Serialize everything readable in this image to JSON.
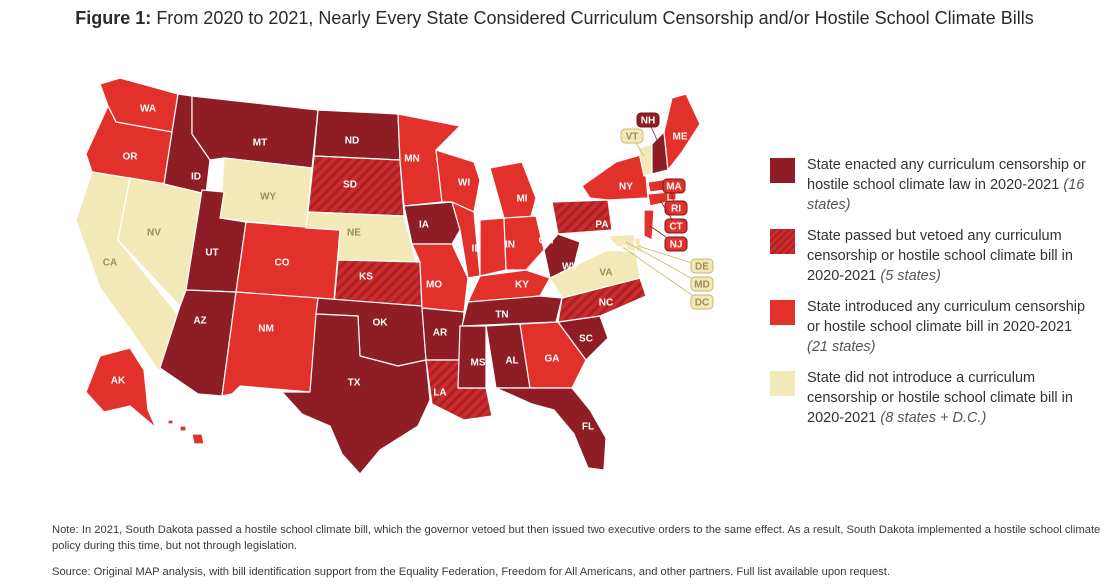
{
  "title": {
    "prefix": "Figure 1:",
    "text": "From 2020 to 2021, Nearly Every State Considered Curriculum Censorship and/or Hostile School Climate Bills"
  },
  "colors": {
    "enacted": "#8e1d26",
    "vetoed": "#cf2b2b",
    "introduced": "#e2302b",
    "none": "#f3e8b8"
  },
  "legend": [
    {
      "key": "enacted",
      "label": "State enacted any curriculum censorship or hostile school climate law in 2020-2021",
      "count": "(16 states)"
    },
    {
      "key": "vetoed",
      "label": "State passed but vetoed any curriculum censorship or hostile school climate bill in 2020-2021",
      "count": "(5 states)"
    },
    {
      "key": "introduced",
      "label": "State introduced any curriculum censorship or hostile school climate bill in 2020-2021",
      "count": "(21 states)"
    },
    {
      "key": "none",
      "label": "State did not introduce a curriculum censorship or hostile school climate bill in 2020-2021",
      "count": "(8 states + D.C.)"
    }
  ],
  "map": {
    "states": [
      {
        "abbr": "WA",
        "status": "introduced"
      },
      {
        "abbr": "OR",
        "status": "introduced"
      },
      {
        "abbr": "CA",
        "status": "none"
      },
      {
        "abbr": "NV",
        "status": "none"
      },
      {
        "abbr": "ID",
        "status": "enacted"
      },
      {
        "abbr": "MT",
        "status": "enacted"
      },
      {
        "abbr": "WY",
        "status": "none"
      },
      {
        "abbr": "UT",
        "status": "enacted"
      },
      {
        "abbr": "AZ",
        "status": "enacted"
      },
      {
        "abbr": "CO",
        "status": "introduced"
      },
      {
        "abbr": "NM",
        "status": "introduced"
      },
      {
        "abbr": "ND",
        "status": "enacted"
      },
      {
        "abbr": "SD",
        "status": "vetoed"
      },
      {
        "abbr": "NE",
        "status": "none"
      },
      {
        "abbr": "KS",
        "status": "vetoed"
      },
      {
        "abbr": "OK",
        "status": "enacted"
      },
      {
        "abbr": "TX",
        "status": "enacted"
      },
      {
        "abbr": "MN",
        "status": "introduced"
      },
      {
        "abbr": "IA",
        "status": "enacted"
      },
      {
        "abbr": "MO",
        "status": "introduced"
      },
      {
        "abbr": "AR",
        "status": "enacted"
      },
      {
        "abbr": "LA",
        "status": "vetoed"
      },
      {
        "abbr": "WI",
        "status": "introduced"
      },
      {
        "abbr": "IL",
        "status": "introduced"
      },
      {
        "abbr": "MI",
        "status": "introduced"
      },
      {
        "abbr": "IN",
        "status": "introduced"
      },
      {
        "abbr": "OH",
        "status": "introduced"
      },
      {
        "abbr": "KY",
        "status": "introduced"
      },
      {
        "abbr": "TN",
        "status": "enacted"
      },
      {
        "abbr": "MS",
        "status": "enacted"
      },
      {
        "abbr": "AL",
        "status": "enacted"
      },
      {
        "abbr": "GA",
        "status": "introduced"
      },
      {
        "abbr": "FL",
        "status": "enacted"
      },
      {
        "abbr": "SC",
        "status": "enacted"
      },
      {
        "abbr": "NC",
        "status": "vetoed"
      },
      {
        "abbr": "VA",
        "status": "none"
      },
      {
        "abbr": "WV",
        "status": "enacted"
      },
      {
        "abbr": "PA",
        "status": "vetoed"
      },
      {
        "abbr": "NY",
        "status": "introduced"
      },
      {
        "abbr": "VT",
        "status": "none"
      },
      {
        "abbr": "NH",
        "status": "enacted"
      },
      {
        "abbr": "ME",
        "status": "introduced"
      },
      {
        "abbr": "MA",
        "status": "introduced"
      },
      {
        "abbr": "RI",
        "status": "introduced"
      },
      {
        "abbr": "CT",
        "status": "introduced"
      },
      {
        "abbr": "NJ",
        "status": "introduced"
      },
      {
        "abbr": "DE",
        "status": "none"
      },
      {
        "abbr": "MD",
        "status": "none"
      },
      {
        "abbr": "DC",
        "status": "none"
      },
      {
        "abbr": "AK",
        "status": "introduced"
      },
      {
        "abbr": "HI",
        "status": "introduced"
      }
    ]
  },
  "note": "Note: In 2021, South Dakota passed a hostile school climate bill, which the governor vetoed but then issued two executive orders to the same effect. As a result, South Dakota implemented a hostile school climate policy during this time, but not through legislation.",
  "source": "Source: Original MAP analysis, with bill identification support from the Equality Federation, Freedom for All Americans, and other partners. Full list available upon request."
}
